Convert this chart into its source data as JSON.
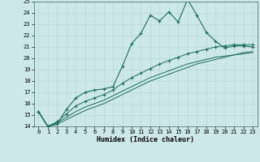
{
  "xlabel": "Humidex (Indice chaleur)",
  "xlim_min": -0.5,
  "xlim_max": 23.5,
  "ylim_min": 14,
  "ylim_max": 25,
  "xticks": [
    0,
    1,
    2,
    3,
    4,
    5,
    6,
    7,
    8,
    9,
    10,
    11,
    12,
    13,
    14,
    15,
    16,
    17,
    18,
    19,
    20,
    21,
    22,
    23
  ],
  "yticks": [
    14,
    15,
    16,
    17,
    18,
    19,
    20,
    21,
    22,
    23,
    24,
    25
  ],
  "bg_color": "#cde8e8",
  "line_color": "#1a6b60",
  "grid_color": "#b8d8d8",
  "series_main": [
    15.3,
    14.0,
    14.2,
    15.5,
    16.5,
    17.0,
    17.2,
    17.3,
    17.5,
    19.3,
    21.3,
    22.2,
    23.8,
    23.3,
    24.1,
    23.2,
    25.2,
    23.8,
    22.3,
    21.5,
    20.9,
    21.1,
    21.1,
    21.0
  ],
  "series_line1": [
    15.3,
    14.0,
    14.4,
    15.1,
    15.8,
    16.2,
    16.5,
    16.8,
    17.2,
    17.8,
    18.3,
    18.7,
    19.1,
    19.5,
    19.8,
    20.1,
    20.4,
    20.6,
    20.8,
    21.0,
    21.1,
    21.2,
    21.2,
    21.2
  ],
  "series_line2": [
    15.3,
    14.0,
    14.2,
    14.6,
    15.0,
    15.4,
    15.7,
    16.0,
    16.4,
    16.8,
    17.2,
    17.6,
    18.0,
    18.3,
    18.6,
    18.9,
    19.2,
    19.5,
    19.7,
    19.9,
    20.1,
    20.3,
    20.5,
    20.6
  ],
  "series_line3": [
    15.3,
    14.0,
    14.3,
    14.8,
    15.3,
    15.7,
    16.0,
    16.3,
    16.7,
    17.1,
    17.5,
    17.9,
    18.3,
    18.6,
    18.9,
    19.2,
    19.5,
    19.7,
    19.9,
    20.1,
    20.2,
    20.3,
    20.4,
    20.5
  ]
}
